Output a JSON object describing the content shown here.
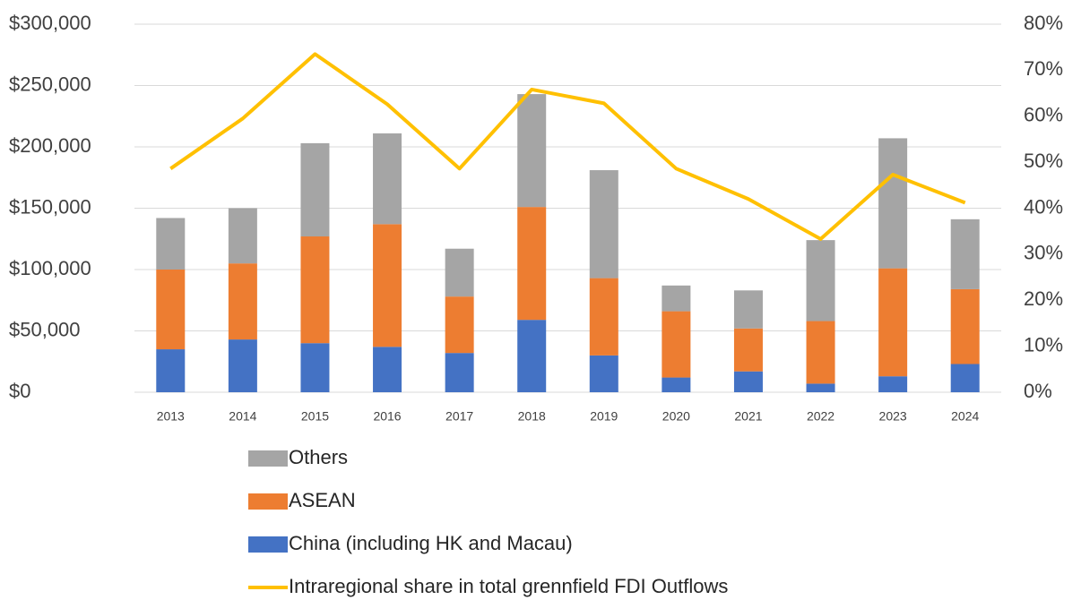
{
  "chart_data": {
    "type": "bar",
    "stacked": true,
    "categories": [
      "2013",
      "2014",
      "2015",
      "2016",
      "2017",
      "2018",
      "2019",
      "2020",
      "2021",
      "2022",
      "2023",
      "2024"
    ],
    "series": [
      {
        "name": "China (including HK and Macau)",
        "color": "#4472c4",
        "type": "bar",
        "values": [
          35000,
          43000,
          40000,
          37000,
          32000,
          59000,
          30000,
          12000,
          17000,
          7000,
          13000,
          23000
        ]
      },
      {
        "name": "ASEAN",
        "color": "#ed7d31",
        "type": "bar",
        "values": [
          65000,
          62000,
          87000,
          100000,
          46000,
          92000,
          63000,
          54000,
          35000,
          51000,
          88000,
          61000
        ]
      },
      {
        "name": "Others",
        "color": "#a5a5a5",
        "type": "bar",
        "values": [
          42000,
          45000,
          76000,
          74000,
          39000,
          92000,
          88000,
          21000,
          31000,
          66000,
          106000,
          57000
        ]
      },
      {
        "name": "Intraregional share in total grennfield FDI Outflows",
        "color": "#ffc000",
        "type": "line",
        "axis": "y2",
        "values": [
          48.6,
          59.5,
          73.5,
          62.6,
          48.6,
          65.8,
          62.8,
          48.6,
          42,
          33.3,
          47.3,
          41.2
        ]
      }
    ],
    "ylim": [
      0,
      300000
    ],
    "yticks": [
      {
        "value": 0,
        "label": "$0"
      },
      {
        "value": 50000,
        "label": "$50,000"
      },
      {
        "value": 100000,
        "label": "$100,000"
      },
      {
        "value": 150000,
        "label": "$150,000"
      },
      {
        "value": 200000,
        "label": "$200,000"
      },
      {
        "value": 250000,
        "label": "$250,000"
      },
      {
        "value": 300000,
        "label": "$300,000"
      }
    ],
    "y2lim": [
      0,
      80
    ],
    "y2ticks": [
      {
        "value": 0,
        "label": "0%"
      },
      {
        "value": 10,
        "label": "10%"
      },
      {
        "value": 20,
        "label": "20%"
      },
      {
        "value": 30,
        "label": "30%"
      },
      {
        "value": 40,
        "label": "40%"
      },
      {
        "value": 50,
        "label": "50%"
      },
      {
        "value": 60,
        "label": "60%"
      },
      {
        "value": 70,
        "label": "70%"
      },
      {
        "value": 80,
        "label": "80%"
      }
    ],
    "grid": true,
    "legend": "bottom"
  }
}
